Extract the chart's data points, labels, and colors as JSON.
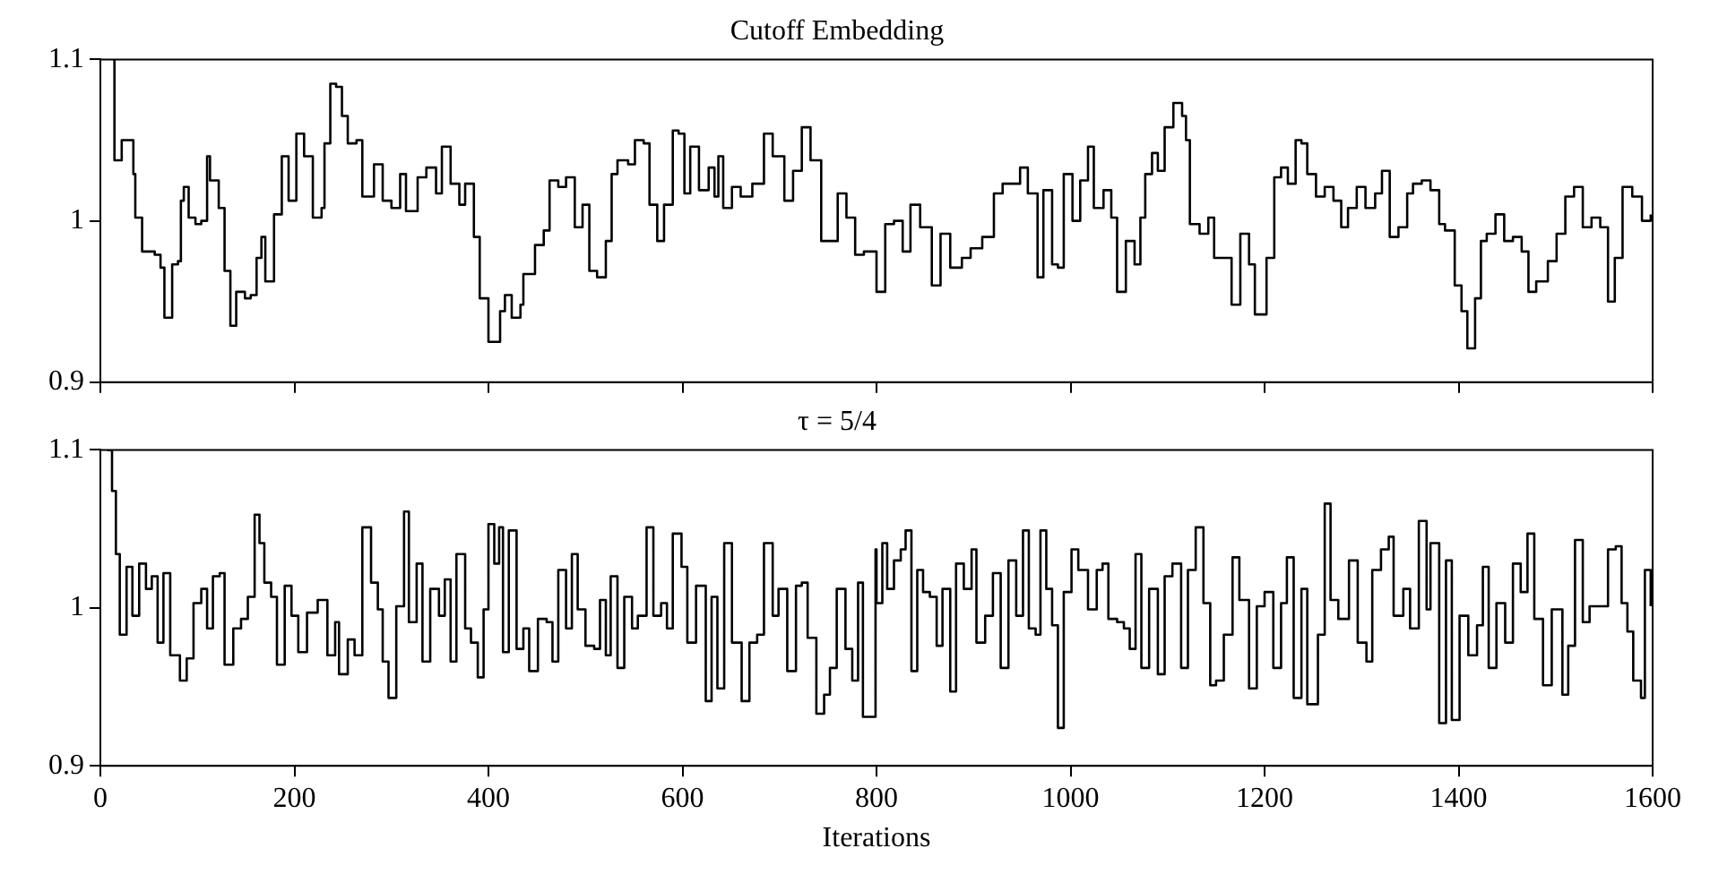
{
  "chart_data": [
    {
      "type": "step",
      "title": "Cutoff Embedding",
      "tick_labels": "y",
      "xlim": [
        0,
        1600
      ],
      "ylim": [
        0.9,
        1.1
      ],
      "xticks": [
        0,
        200,
        400,
        600,
        800,
        1000,
        1200,
        1400,
        1600
      ],
      "yticks": [
        0.9,
        1,
        1.1
      ],
      "x": [
        13,
        14.5,
        22,
        28,
        34,
        36,
        43,
        56,
        62,
        66,
        71,
        74,
        80,
        83,
        86,
        91,
        98,
        104,
        110,
        113,
        122,
        128,
        134,
        140,
        149,
        155,
        161,
        166,
        170,
        179,
        187,
        194,
        202,
        210,
        219,
        228,
        231,
        237,
        243,
        249,
        255,
        264,
        270,
        282,
        291,
        300,
        309,
        315,
        327,
        336,
        346,
        352,
        361,
        370,
        376,
        385,
        391,
        400,
        406,
        412,
        417,
        424,
        433,
        436,
        448,
        457,
        463,
        472,
        480,
        489,
        497,
        504,
        512,
        521,
        527,
        533,
        544,
        551,
        560,
        566,
        574,
        581,
        590,
        596,
        602,
        608,
        617,
        627,
        633,
        637,
        642,
        651,
        660,
        672,
        684,
        693,
        705,
        714,
        723,
        732,
        743,
        750,
        760,
        769,
        778,
        787,
        800,
        809,
        818,
        827,
        835,
        845,
        857,
        866,
        876,
        888,
        897,
        909,
        921,
        930,
        939,
        948,
        956,
        966,
        972,
        981,
        987,
        993,
        1002,
        1010,
        1018,
        1024,
        1034,
        1042,
        1048,
        1057,
        1066,
        1072,
        1077,
        1084,
        1090,
        1097,
        1106,
        1115,
        1119,
        1123,
        1133,
        1142,
        1148,
        1154,
        1160,
        1166,
        1175,
        1184,
        1190,
        1196,
        1202,
        1210,
        1217,
        1224,
        1232,
        1238,
        1244,
        1253,
        1262,
        1271,
        1279,
        1286,
        1295,
        1304,
        1314,
        1321,
        1329,
        1338,
        1347,
        1353,
        1362,
        1371,
        1380,
        1386,
        1396,
        1403,
        1409,
        1417,
        1423,
        1429,
        1438,
        1447,
        1456,
        1465,
        1472,
        1480,
        1492,
        1501,
        1510,
        1519,
        1528,
        1537,
        1546,
        1554,
        1561,
        1569,
        1579,
        1589,
        1598
      ],
      "series": [
        {
          "color": "#000000",
          "values": [
            1.1,
            1.0375,
            1.05,
            1.05,
            1.029,
            1.002,
            0.981,
            0.979,
            0.971,
            0.94,
            0.94,
            0.973,
            0.975,
            1.0125,
            1.021,
            1.002,
            0.998,
            1.0,
            1.04,
            1.025,
            1.008,
            0.969,
            0.935,
            0.956,
            0.952,
            0.954,
            0.977,
            0.99,
            0.9625,
            1.004,
            1.04,
            1.0125,
            1.054,
            1.04,
            1.002,
            1.008,
            1.048,
            1.085,
            1.083,
            1.065,
            1.048,
            1.05,
            1.015,
            1.035,
            1.0125,
            1.008,
            1.029,
            1.006,
            1.027,
            1.033,
            1.017,
            1.046,
            1.023,
            1.01,
            1.023,
            0.99,
            0.952,
            0.925,
            0.925,
            0.944,
            0.954,
            0.94,
            0.948,
            0.967,
            0.985,
            0.994,
            1.025,
            1.021,
            1.027,
            0.996,
            1.01,
            0.969,
            0.965,
            0.9875,
            1.029,
            1.0375,
            1.035,
            1.05,
            1.048,
            1.01,
            0.9875,
            1.01,
            1.056,
            1.054,
            1.017,
            1.046,
            1.019,
            1.033,
            1.015,
            1.04,
            1.008,
            1.021,
            1.015,
            1.023,
            1.054,
            1.04,
            1.0125,
            1.031,
            1.058,
            1.0375,
            0.9875,
            0.9875,
            1.017,
            1.002,
            0.979,
            0.981,
            0.956,
            0.998,
            1.0,
            0.981,
            1.01,
            0.996,
            0.96,
            0.992,
            0.971,
            0.977,
            0.983,
            0.99,
            1.017,
            1.023,
            1.023,
            1.033,
            1.017,
            0.965,
            1.019,
            0.973,
            0.971,
            1.029,
            1.0,
            1.025,
            1.046,
            1.008,
            1.019,
            1.002,
            0.956,
            0.9875,
            0.973,
            1.002,
            1.029,
            1.042,
            1.031,
            1.058,
            1.073,
            1.065,
            1.05,
            0.998,
            0.992,
            1.002,
            0.977,
            0.977,
            0.977,
            0.948,
            0.992,
            0.973,
            0.942,
            0.942,
            0.977,
            1.027,
            1.033,
            1.023,
            1.05,
            1.048,
            1.029,
            1.015,
            1.021,
            1.0125,
            0.996,
            1.008,
            1.021,
            1.008,
            1.017,
            1.031,
            0.99,
            0.996,
            1.017,
            1.023,
            1.025,
            1.019,
            0.998,
            0.994,
            0.96,
            0.944,
            0.921,
            0.952,
            0.9875,
            0.992,
            1.004,
            0.9875,
            0.99,
            0.981,
            0.956,
            0.9625,
            0.975,
            0.992,
            1.015,
            1.021,
            0.996,
            1.002,
            0.996,
            0.95,
            0.977,
            1.021,
            1.015,
            1.0,
            1.004
          ]
        }
      ]
    },
    {
      "type": "step",
      "title": "τ = 5/4",
      "xlabel": "Iterations",
      "xlim": [
        0,
        1600
      ],
      "ylim": [
        0.9,
        1.1
      ],
      "xticks": [
        0,
        200,
        400,
        600,
        800,
        1000,
        1200,
        1400,
        1600
      ],
      "yticks": [
        0.9,
        1,
        1.1
      ],
      "x": [
        7,
        12,
        16,
        20,
        27,
        33,
        40,
        47,
        53,
        59,
        65,
        72,
        82,
        89,
        96,
        104,
        110,
        116,
        123,
        128,
        137,
        145,
        152,
        159,
        164,
        169,
        176,
        182,
        190,
        197,
        204,
        213,
        224,
        234,
        242,
        246,
        255,
        262,
        270,
        279,
        286,
        291,
        297,
        305,
        313,
        318,
        326,
        332,
        340,
        349,
        355,
        361,
        367,
        376,
        382,
        389,
        395,
        400,
        406,
        411,
        415,
        421,
        429,
        436,
        442,
        451,
        460,
        466,
        472,
        480,
        486,
        492,
        500,
        509,
        515,
        521,
        526,
        533,
        540,
        548,
        554,
        563,
        570,
        578,
        584,
        590,
        599,
        605,
        614,
        624,
        630,
        636,
        643,
        651,
        661,
        669,
        677,
        684,
        693,
        699,
        708,
        717,
        723,
        729,
        738,
        746,
        752,
        759,
        768,
        775,
        781,
        786,
        794,
        799,
        800,
        806,
        811,
        818,
        825,
        830,
        836,
        842,
        848,
        855,
        862,
        868,
        876,
        882,
        890,
        898,
        903,
        912,
        920,
        928,
        936,
        944,
        951,
        957,
        964,
        969,
        975,
        981,
        987,
        993,
        1001,
        1008,
        1018,
        1027,
        1033,
        1039,
        1048,
        1055,
        1061,
        1067,
        1073,
        1081,
        1090,
        1097,
        1105,
        1114,
        1121,
        1129,
        1137,
        1144,
        1150,
        1158,
        1167,
        1174,
        1184,
        1192,
        1200,
        1209,
        1217,
        1223,
        1230,
        1238,
        1244,
        1250,
        1255,
        1262,
        1268,
        1276,
        1287,
        1296,
        1305,
        1311,
        1320,
        1328,
        1333,
        1343,
        1350,
        1359,
        1367,
        1371,
        1380,
        1387,
        1393,
        1401,
        1410,
        1419,
        1425,
        1431,
        1439,
        1448,
        1456,
        1464,
        1471,
        1478,
        1487,
        1496,
        1507,
        1513,
        1520,
        1528,
        1535,
        1546,
        1554,
        1562,
        1568,
        1574,
        1580,
        1588,
        1592,
        1598
      ],
      "series": [
        {
          "color": "#000000",
          "values": [
            1.1,
            1.074,
            1.034,
            0.983,
            1.026,
            0.995,
            1.028,
            1.012,
            1.02,
            0.978,
            1.022,
            0.97,
            0.954,
            0.968,
            1.003,
            1.012,
            0.987,
            1.02,
            1.022,
            0.964,
            0.987,
            0.993,
            1.007,
            1.059,
            1.041,
            1.016,
            1.007,
            0.964,
            1.014,
            0.995,
            0.972,
            0.997,
            1.005,
            0.97,
            0.991,
            0.958,
            0.98,
            0.97,
            1.051,
            1.016,
            0.999,
            0.966,
            0.943,
            1.001,
            1.061,
            0.991,
            1.028,
            0.966,
            1.012,
            0.995,
            1.018,
            0.966,
            1.034,
            0.987,
            0.978,
            0.956,
            0.999,
            1.053,
            1.028,
            1.051,
            0.972,
            1.049,
            0.974,
            0.987,
            0.96,
            0.993,
            0.991,
            0.966,
            1.024,
            0.987,
            1.034,
            0.999,
            0.976,
            0.974,
            1.005,
            0.97,
            1.02,
            0.962,
            1.007,
            0.987,
            0.995,
            1.051,
            0.995,
            1.003,
            0.987,
            1.047,
            1.026,
            0.978,
            1.014,
            0.941,
            1.007,
            0.949,
            1.041,
            0.978,
            0.941,
            0.978,
            0.983,
            1.041,
            0.995,
            1.012,
            0.96,
            1.014,
            1.016,
            0.981,
            0.933,
            0.945,
            0.962,
            1.012,
            0.974,
            0.954,
            1.016,
            0.931,
            0.931,
            1.037,
            1.003,
            1.041,
            1.012,
            1.03,
            1.037,
            1.049,
            0.96,
            1.024,
            1.01,
            1.007,
            0.976,
            1.012,
            0.947,
            1.028,
            1.012,
            1.037,
            0.978,
            0.995,
            1.022,
            0.962,
            1.03,
            0.995,
            1.049,
            0.987,
            0.983,
            1.049,
            1.012,
            0.989,
            0.924,
            1.01,
            1.037,
            1.024,
            0.999,
            1.024,
            1.028,
            0.993,
            0.991,
            0.987,
            0.974,
            1.034,
            0.962,
            1.012,
            0.958,
            1.02,
            1.028,
            0.962,
            1.024,
            1.051,
            1.003,
            0.951,
            0.954,
            0.983,
            1.032,
            1.005,
            0.949,
            1.001,
            1.01,
            0.962,
            1.003,
            1.032,
            0.943,
            1.012,
            0.939,
            0.939,
            0.983,
            1.066,
            1.005,
            0.993,
            1.03,
            0.978,
            0.966,
            1.024,
            1.037,
            1.045,
            0.995,
            1.012,
            0.987,
            1.055,
            0.999,
            1.041,
            0.927,
            1.03,
            0.929,
            0.995,
            0.97,
            0.989,
            1.026,
            0.962,
            1.003,
            0.978,
            1.028,
            1.01,
            1.047,
            0.993,
            0.951,
            0.999,
            0.945,
            0.976,
            1.043,
            0.991,
            1.001,
            1.001,
            1.037,
            1.039,
            1.003,
            0.985,
            0.954,
            0.943,
            1.024,
            1.001
          ]
        }
      ]
    }
  ]
}
